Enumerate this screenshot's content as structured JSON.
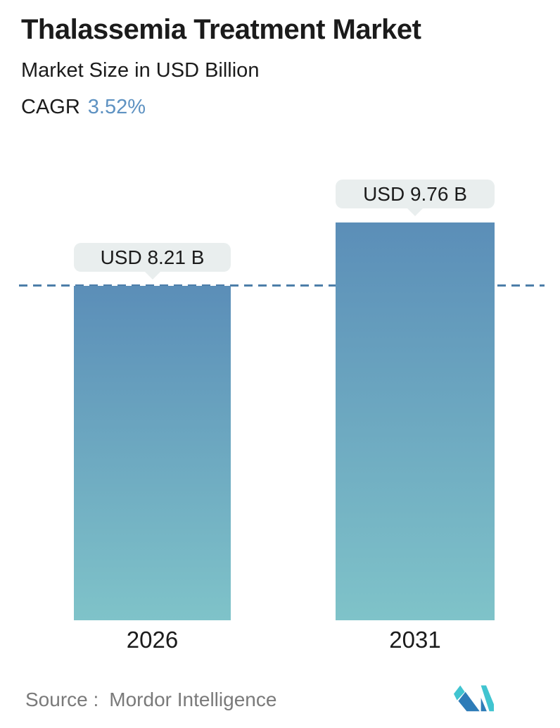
{
  "header": {
    "title": "Thalassemia Treatment Market",
    "subtitle": "Market Size in USD Billion",
    "cagr_label": "CAGR",
    "cagr_value": "3.52%"
  },
  "chart_data": {
    "type": "bar",
    "title": "Thalassemia Treatment Market",
    "subtitle": "Market Size in USD Billion",
    "unit": "USD Billion",
    "cagr": "3.52%",
    "categories": [
      "2026",
      "2031"
    ],
    "values": [
      8.21,
      9.76
    ],
    "value_labels": [
      "USD 8.21 B",
      "USD 9.76 B"
    ],
    "ylim": [
      0,
      10
    ],
    "grid": false,
    "legend": false,
    "reference_line": {
      "style": "dashed",
      "at_value": 8.21,
      "aligned_with": "top of 2026 bar"
    },
    "bar_gradient": [
      "#5b8eb8",
      "#7fc3c9"
    ]
  },
  "source": {
    "label": "Source :",
    "name": "Mordor Intelligence"
  },
  "logo": {
    "name": "mordor-intelligence-logo"
  },
  "colors": {
    "text_dark": "#1b1b1b",
    "source_gray": "#7a7a7a",
    "accent_blue": "#5e92c2",
    "dashed_line": "#4d7ea9",
    "callout_bg": "#e9eeee",
    "bar_gradient_top": "#5b8eb8",
    "bar_gradient_bottom": "#7fc3c9",
    "logo_teal": "#41c4d0",
    "logo_blue": "#2e7cb8"
  }
}
